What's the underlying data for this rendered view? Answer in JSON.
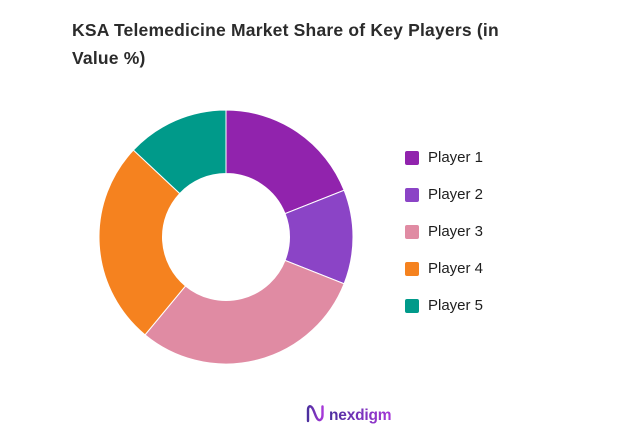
{
  "page": {
    "background": "#ffffff"
  },
  "title": {
    "text": "KSA Telemedicine Market Share of Key Players (in Value %)"
  },
  "chart_data": {
    "type": "pie",
    "subtype": "donut",
    "title": "KSA Telemedicine Market Share of Key Players (in Value %)",
    "categories": [
      "Player 1",
      "Player 2",
      "Player 3",
      "Player 4",
      "Player 5"
    ],
    "values": [
      19,
      12,
      30,
      26,
      13
    ],
    "unit": "% of market value",
    "colors": [
      "#9123ad",
      "#8b44c6",
      "#e08ba3",
      "#f5821f",
      "#009a8a"
    ],
    "start_angle_deg": 0,
    "direction": "clockwise",
    "donut_hole_ratio": 0.5,
    "legend_position": "right",
    "data_labels": false,
    "grid": false
  },
  "footer": {
    "brand_text": "nexdigm",
    "brand_color_start": "#4b2f9e",
    "brand_color_end": "#a637d8"
  }
}
